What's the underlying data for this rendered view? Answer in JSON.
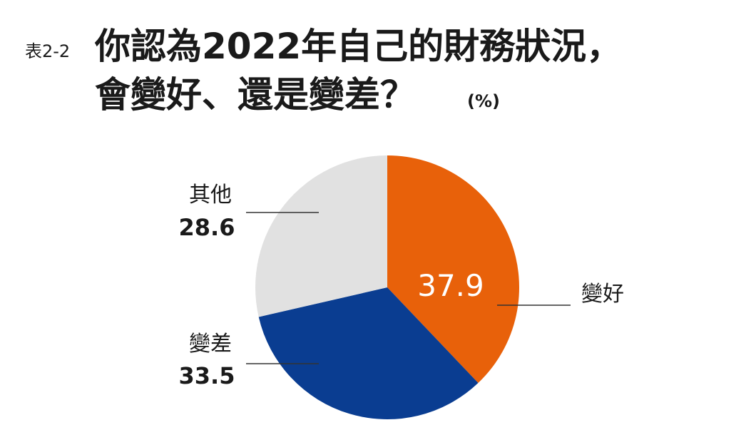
{
  "chart_data": {
    "type": "pie",
    "label": "表2-2",
    "title": [
      "你認為2022年自己的財務狀況，",
      "會變好、還是變差？"
    ],
    "unit": "(%)",
    "categories": [
      "變好",
      "變差",
      "其他"
    ],
    "values": [
      37.9,
      33.5,
      28.6
    ],
    "colors": [
      "#e8610a",
      "#0a3d91",
      "#e1e1e1"
    ]
  }
}
